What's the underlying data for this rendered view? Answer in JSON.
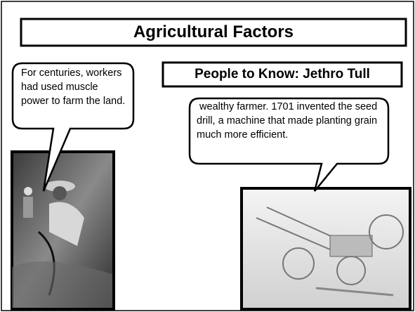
{
  "title": "Agricultural Factors",
  "left_bubble": {
    "text": "For centuries, workers had used muscle power to farm the land."
  },
  "right_header": {
    "text": "People to Know: Jethro Tull"
  },
  "right_bubble": {
    "text": " wealthy farmer. 1701 invented the seed drill, a machine that made planting grain much more efficient."
  }
}
